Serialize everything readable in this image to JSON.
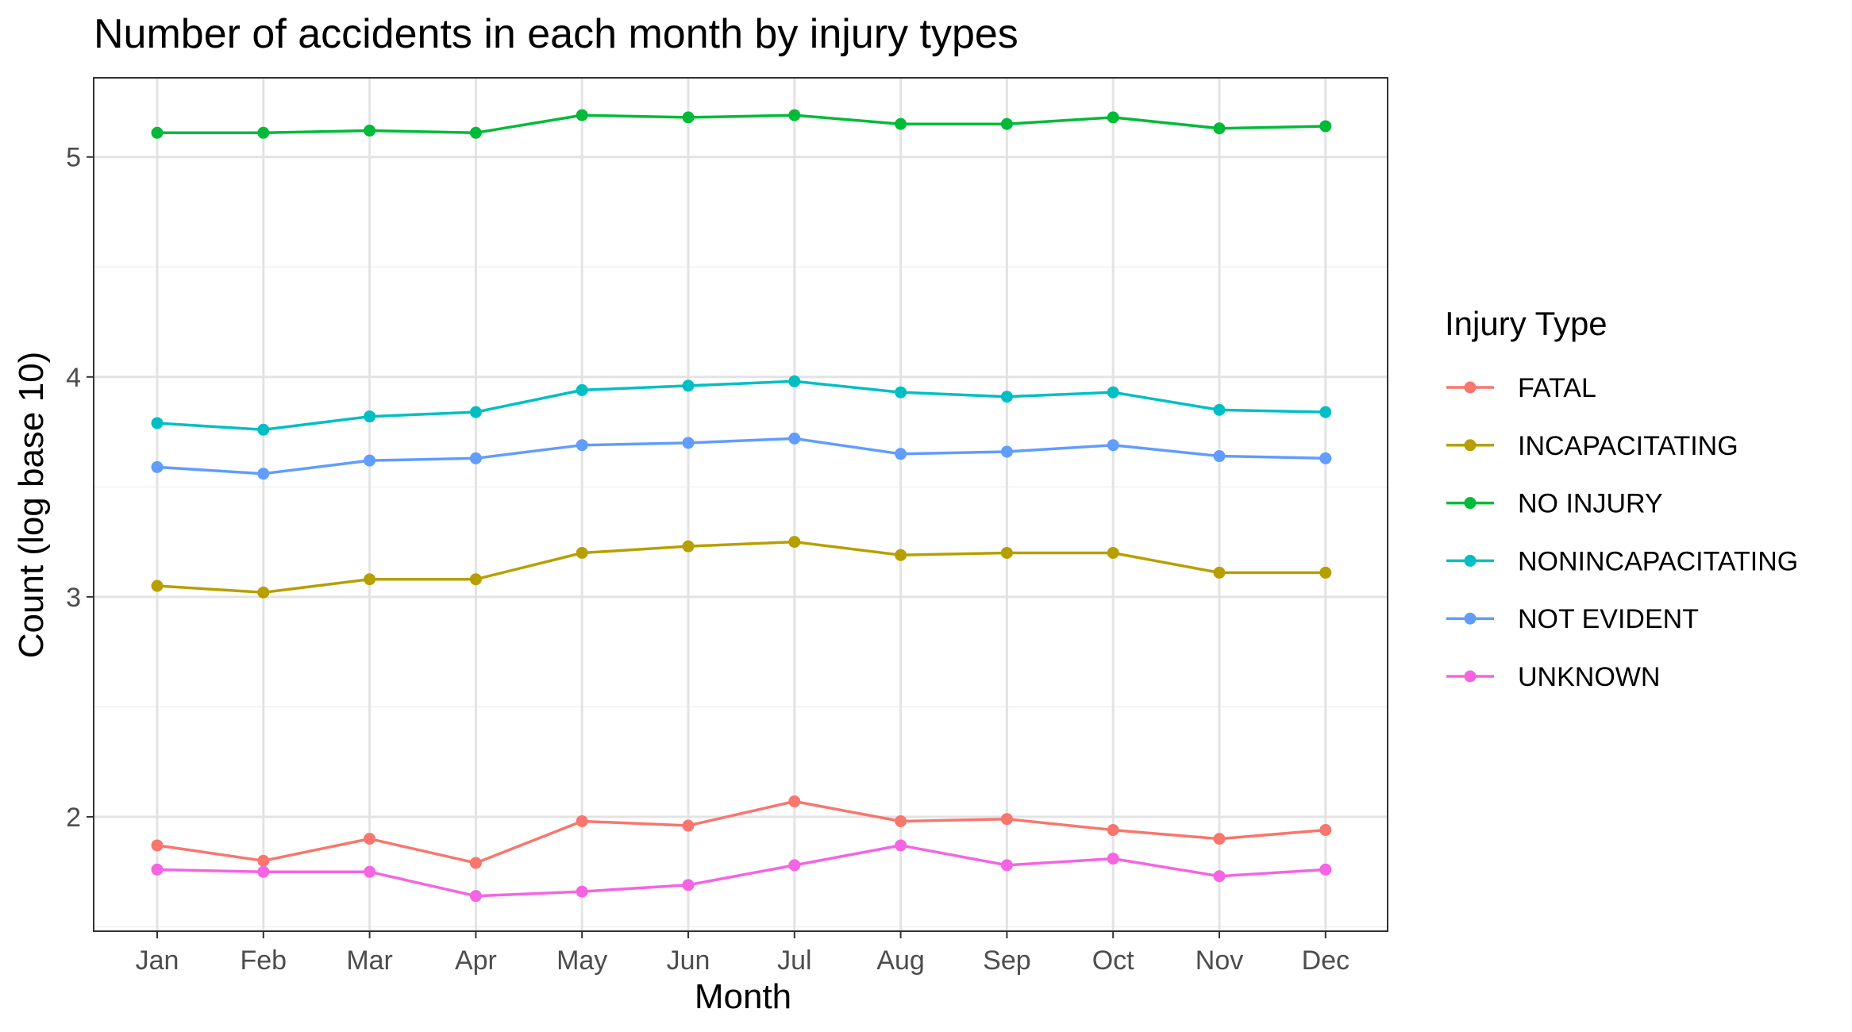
{
  "chart_data": {
    "type": "line",
    "title": "Number of accidents in each month by injury types",
    "xlabel": "Month",
    "ylabel": "Count (log base 10)",
    "categories": [
      "Jan",
      "Feb",
      "Mar",
      "Apr",
      "May",
      "Jun",
      "Jul",
      "Aug",
      "Sep",
      "Oct",
      "Nov",
      "Dec"
    ],
    "ylim": [
      1.48,
      5.36
    ],
    "yticks": [
      2,
      3,
      4,
      5
    ],
    "grid": true,
    "legend_title": "Injury Type",
    "legend_position": "right",
    "series": [
      {
        "name": "FATAL",
        "color": "#F8766D",
        "values": [
          1.87,
          1.8,
          1.9,
          1.79,
          1.98,
          1.96,
          2.07,
          1.98,
          1.99,
          1.94,
          1.9,
          1.94
        ]
      },
      {
        "name": "INCAPACITATING",
        "color": "#B79F00",
        "values": [
          3.05,
          3.02,
          3.08,
          3.08,
          3.2,
          3.23,
          3.25,
          3.19,
          3.2,
          3.2,
          3.11,
          3.11
        ]
      },
      {
        "name": "NO INJURY",
        "color": "#00BA38",
        "values": [
          5.11,
          5.11,
          5.12,
          5.11,
          5.19,
          5.18,
          5.19,
          5.15,
          5.15,
          5.18,
          5.13,
          5.14
        ]
      },
      {
        "name": "NONINCAPACITATING",
        "color": "#00BFC4",
        "values": [
          3.79,
          3.76,
          3.82,
          3.84,
          3.94,
          3.96,
          3.98,
          3.93,
          3.91,
          3.93,
          3.85,
          3.84
        ]
      },
      {
        "name": "NOT EVIDENT",
        "color": "#619CFF",
        "values": [
          3.59,
          3.56,
          3.62,
          3.63,
          3.69,
          3.7,
          3.72,
          3.65,
          3.66,
          3.69,
          3.64,
          3.63
        ]
      },
      {
        "name": "UNKNOWN",
        "color": "#F564E3",
        "values": [
          1.76,
          1.75,
          1.75,
          1.64,
          1.66,
          1.69,
          1.78,
          1.87,
          1.78,
          1.81,
          1.73,
          1.76
        ]
      }
    ]
  }
}
